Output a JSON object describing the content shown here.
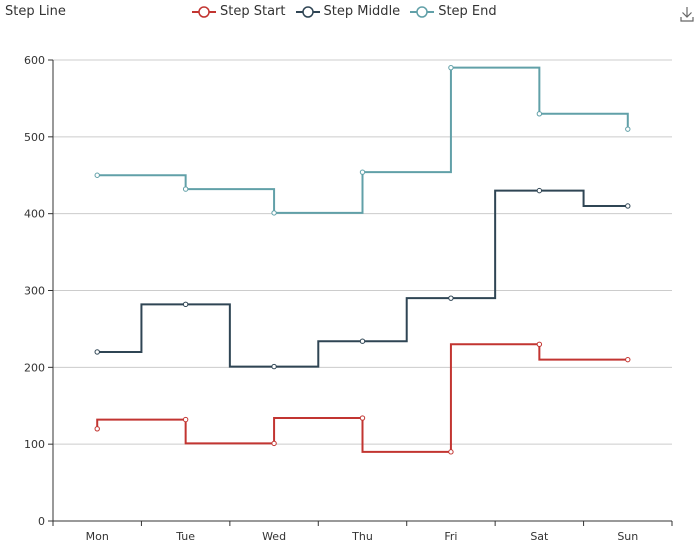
{
  "chart_data": {
    "type": "line",
    "step": true,
    "title": "Step Line",
    "categories": [
      "Mon",
      "Tue",
      "Wed",
      "Thu",
      "Fri",
      "Sat",
      "Sun"
    ],
    "ylim": [
      0,
      600
    ],
    "yticks": [
      0,
      100,
      200,
      300,
      400,
      500,
      600
    ],
    "grid": true,
    "legend": "top-center",
    "series": [
      {
        "name": "Step Start",
        "step": "start",
        "color": "#c23531",
        "values": [
          120,
          132,
          101,
          134,
          90,
          230,
          210
        ]
      },
      {
        "name": "Step Middle",
        "step": "middle",
        "color": "#2f4554",
        "values": [
          220,
          282,
          201,
          234,
          290,
          430,
          410
        ]
      },
      {
        "name": "Step End",
        "step": "end",
        "color": "#61a0a8",
        "values": [
          450,
          432,
          401,
          454,
          590,
          530,
          510
        ]
      }
    ]
  },
  "toolbar": {
    "save_icon": "download-icon"
  }
}
